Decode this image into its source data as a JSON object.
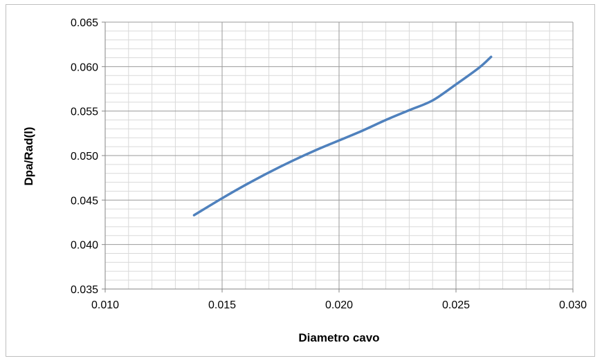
{
  "chart_data": {
    "type": "line",
    "xlabel": "Diametro cavo",
    "ylabel": "Dpa/Rad(l)",
    "xlim": [
      0.01,
      0.03
    ],
    "ylim": [
      0.035,
      0.065
    ],
    "xticks": [
      "0.010",
      "0.015",
      "0.020",
      "0.025",
      "0.030"
    ],
    "yticks": [
      "0.035",
      "0.040",
      "0.045",
      "0.050",
      "0.055",
      "0.060",
      "0.065"
    ],
    "grid": true,
    "legend": "none",
    "series": [
      {
        "color": "#4f81bd",
        "x": [
          0.0138,
          0.015,
          0.016,
          0.017,
          0.018,
          0.019,
          0.02,
          0.021,
          0.022,
          0.023,
          0.024,
          0.025,
          0.026,
          0.0265
        ],
        "y": [
          0.0433,
          0.0452,
          0.0467,
          0.0481,
          0.0494,
          0.0506,
          0.0517,
          0.0528,
          0.054,
          0.0551,
          0.0562,
          0.058,
          0.0599,
          0.0611
        ]
      }
    ]
  }
}
